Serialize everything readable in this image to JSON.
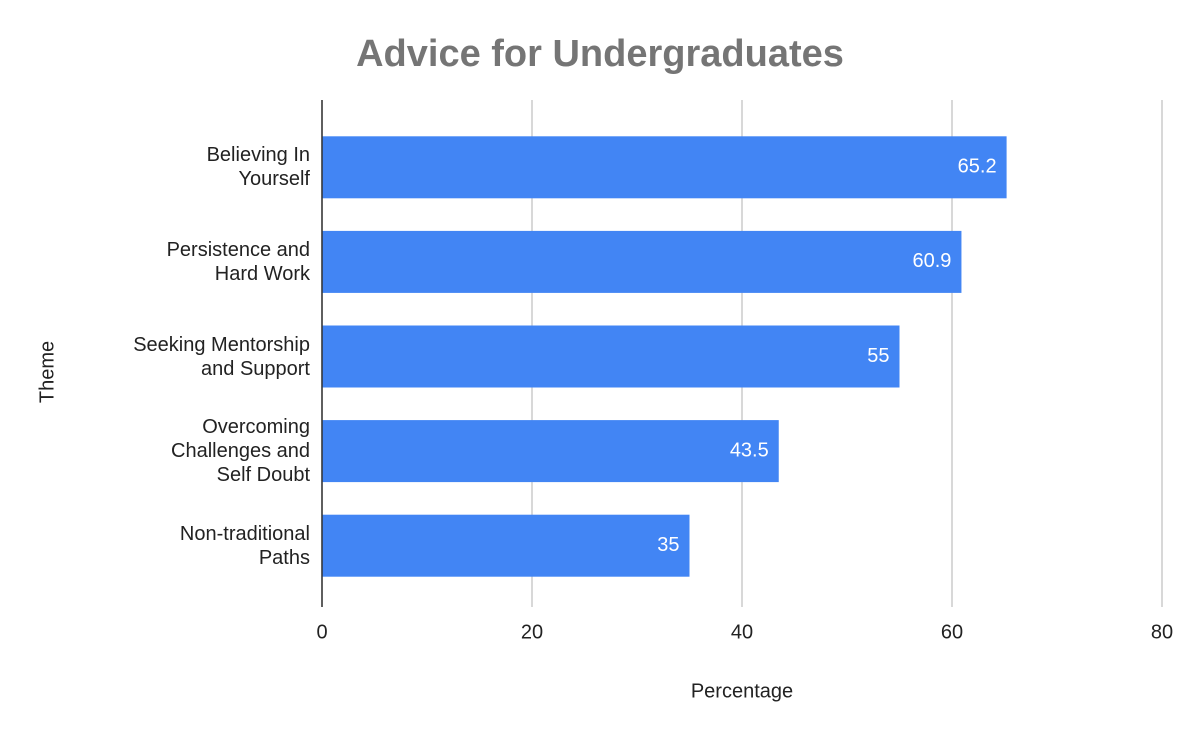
{
  "chart_data": {
    "type": "bar",
    "orientation": "horizontal",
    "title": "Advice for Undergraduates",
    "x_label": "Percentage",
    "y_label": "Theme",
    "categories": [
      "Believing In\nYourself",
      "Persistence and\nHard Work",
      "Seeking Mentorship\nand Support",
      "Overcoming\nChallenges and\nSelf Doubt",
      "Non-traditional\nPaths"
    ],
    "values": [
      65.2,
      60.9,
      55,
      43.5,
      35
    ],
    "color": "#4285f4",
    "xlim": [
      0,
      80
    ],
    "xticks": [
      0,
      20,
      40,
      60,
      80
    ],
    "grid": true
  }
}
